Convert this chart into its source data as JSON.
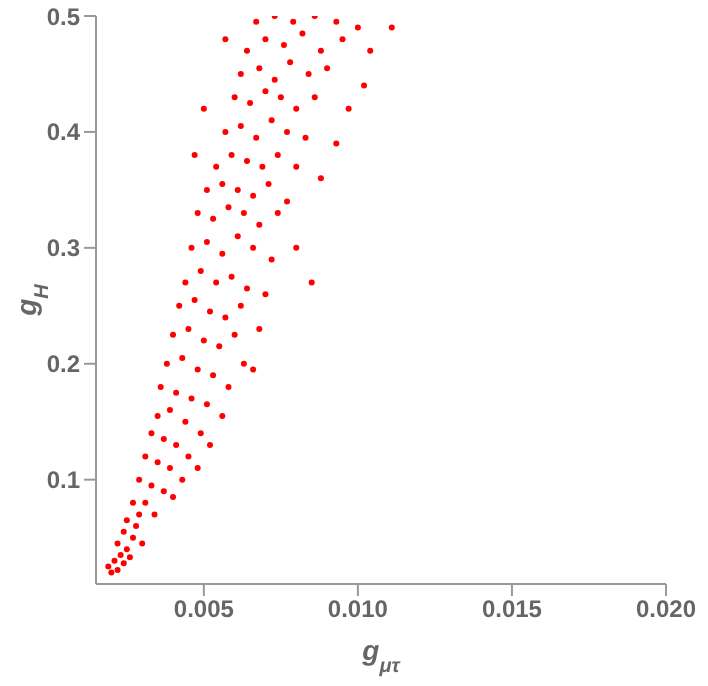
{
  "chart_data": {
    "type": "scatter",
    "xlabel": "g$_{μτ}$",
    "ylabel": "g$_{H}$",
    "marker": "circle",
    "color": "#ff0000",
    "xlim": [
      0.0015,
      0.02
    ],
    "xticks": [
      0.005,
      {
        "value": 0.01,
        "label": "0.010"
      },
      0.015,
      {
        "value": 0.02,
        "label": "0.020"
      }
    ],
    "ylim": [
      0.01,
      0.5
    ],
    "yticks": [
      0.1,
      0.2,
      0.3,
      0.4,
      0.5
    ],
    "x": [
      0.0019,
      0.002,
      0.0021,
      0.0022,
      0.0023,
      0.0024,
      0.0025,
      0.0022,
      0.0027,
      0.0026,
      0.0028,
      0.0024,
      0.003,
      0.0029,
      0.0025,
      0.0027,
      0.0031,
      0.0034,
      0.0029,
      0.0033,
      0.0037,
      0.004,
      0.0031,
      0.0035,
      0.0039,
      0.0043,
      0.0033,
      0.0037,
      0.0041,
      0.0045,
      0.0048,
      0.0035,
      0.0039,
      0.0044,
      0.0049,
      0.0052,
      0.0036,
      0.0041,
      0.0046,
      0.0051,
      0.0056,
      0.0038,
      0.0043,
      0.0048,
      0.0053,
      0.0058,
      0.0063,
      0.004,
      0.0045,
      0.005,
      0.0055,
      0.006,
      0.0066,
      0.0042,
      0.0047,
      0.0052,
      0.0057,
      0.0062,
      0.0068,
      0.0044,
      0.0049,
      0.0054,
      0.0059,
      0.0064,
      0.007,
      0.0046,
      0.0051,
      0.0056,
      0.0061,
      0.0066,
      0.0072,
      0.008,
      0.0048,
      0.0053,
      0.0058,
      0.0063,
      0.0068,
      0.0074,
      0.0085,
      0.0051,
      0.0056,
      0.0061,
      0.0066,
      0.0071,
      0.0077,
      0.0054,
      0.0059,
      0.0064,
      0.0069,
      0.0074,
      0.008,
      0.0088,
      0.0047,
      0.0057,
      0.0062,
      0.0067,
      0.0072,
      0.0077,
      0.0083,
      0.0093,
      0.006,
      0.0065,
      0.007,
      0.0075,
      0.008,
      0.0086,
      0.0097,
      0.005,
      0.0062,
      0.0068,
      0.0073,
      0.0078,
      0.0084,
      0.009,
      0.0102,
      0.0064,
      0.007,
      0.0076,
      0.0082,
      0.0088,
      0.0095,
      0.0104,
      0.0067,
      0.0073,
      0.0079,
      0.0086,
      0.0093,
      0.01,
      0.0111,
      0.0057
    ],
    "values": [
      0.025,
      0.02,
      0.03,
      0.022,
      0.035,
      0.028,
      0.04,
      0.045,
      0.05,
      0.033,
      0.06,
      0.055,
      0.045,
      0.07,
      0.065,
      0.08,
      0.08,
      0.07,
      0.1,
      0.095,
      0.09,
      0.085,
      0.12,
      0.115,
      0.11,
      0.1,
      0.14,
      0.135,
      0.13,
      0.12,
      0.11,
      0.155,
      0.16,
      0.15,
      0.14,
      0.13,
      0.18,
      0.175,
      0.17,
      0.165,
      0.155,
      0.2,
      0.205,
      0.195,
      0.19,
      0.18,
      0.2,
      0.225,
      0.23,
      0.22,
      0.215,
      0.225,
      0.195,
      0.25,
      0.255,
      0.245,
      0.24,
      0.25,
      0.23,
      0.27,
      0.28,
      0.27,
      0.275,
      0.265,
      0.26,
      0.3,
      0.305,
      0.295,
      0.31,
      0.3,
      0.29,
      0.3,
      0.33,
      0.325,
      0.335,
      0.33,
      0.32,
      0.33,
      0.27,
      0.35,
      0.355,
      0.35,
      0.345,
      0.355,
      0.34,
      0.37,
      0.38,
      0.375,
      0.37,
      0.38,
      0.37,
      0.36,
      0.38,
      0.4,
      0.405,
      0.395,
      0.41,
      0.4,
      0.395,
      0.39,
      0.43,
      0.425,
      0.435,
      0.43,
      0.42,
      0.43,
      0.42,
      0.42,
      0.45,
      0.455,
      0.445,
      0.46,
      0.45,
      0.455,
      0.44,
      0.47,
      0.48,
      0.475,
      0.485,
      0.47,
      0.48,
      0.47,
      0.495,
      0.5,
      0.495,
      0.5,
      0.495,
      0.49,
      0.49,
      0.48
    ]
  }
}
